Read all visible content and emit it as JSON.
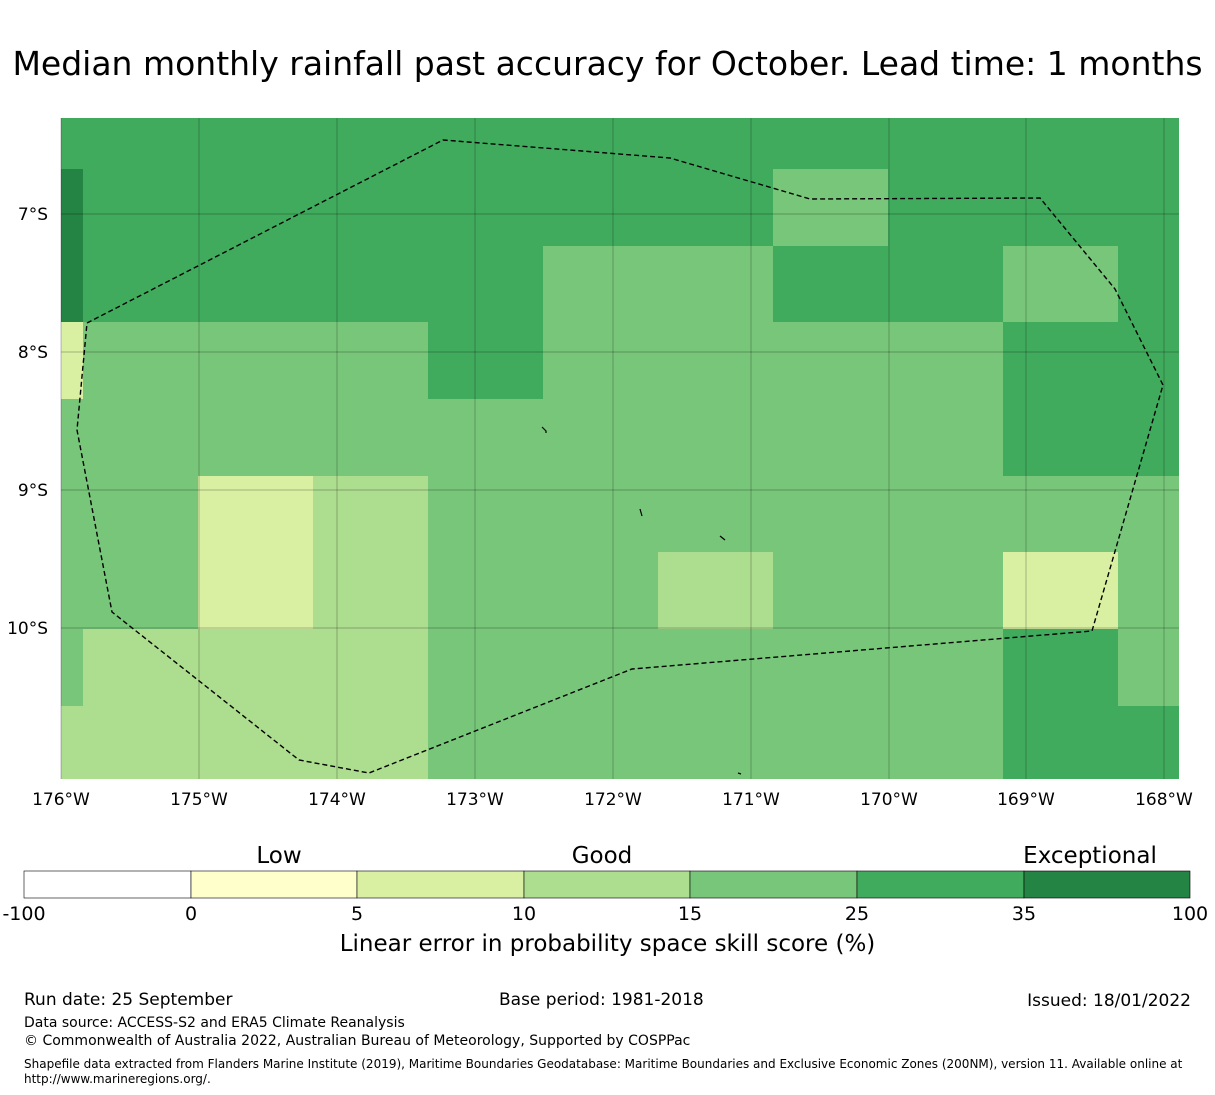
{
  "title": "Median monthly rainfall past accuracy for October. Lead time: 1 months",
  "map": {
    "lat_labels": [
      "7°S",
      "8°S",
      "9°S",
      "10°S"
    ],
    "lon_labels": [
      "176°W",
      "175°W",
      "174°W",
      "173°W",
      "172°W",
      "171°W",
      "170°W",
      "169°W",
      "168°W"
    ],
    "palette": {
      "c0": "#ffffcc",
      "c1": "#d9f0a3",
      "c2": "#addd8e",
      "c3": "#78c679",
      "c4": "#41ab5d",
      "c5": "#238443"
    },
    "grid_rows": [
      "c4 c4 c4 c4 c4 c4 c4 c4 c4 c4 c4",
      "c4 c4 c4 c4 c4 c4 c4 c3 c4 c4 c4",
      "c4 c4 c4 c4 c4 c3 c3 c4 c4 c3 c4",
      "c3 c3 c3 c3 c4 c3 c3 c3 c3 c4 c4",
      "c3 c3 c3 c3 c3 c3 c3 c3 c3 c4 c4",
      "c3 c3 c1 c2 c3 c3 c3 c3 c3 c3 c3",
      "c3 c3 c1 c2 c3 c3 c2 c3 c3 c1 c3",
      "c3 c2 c2 c2 c3 c3 c3 c3 c3 c4 c3",
      "c2 c2 c2 c2 c3 c3 c3 c3 c3 c4 c4"
    ],
    "extra_cells": [
      {
        "row_start": 1.0,
        "row_end": 3.0,
        "color": "c5"
      },
      {
        "row_start": 3.0,
        "row_end": 4.0,
        "color": "c1"
      }
    ]
  },
  "colorbar": {
    "category_labels": [
      "Low",
      "Good",
      "Exceptional"
    ],
    "tick_labels": [
      "-100",
      "0",
      "5",
      "10",
      "15",
      "25",
      "35",
      "100"
    ],
    "colors": [
      "#ffffff",
      "#ffffcc",
      "#d9f0a3",
      "#addd8e",
      "#78c679",
      "#41ab5d",
      "#238443"
    ],
    "label": "Linear error in probability space skill score (%)"
  },
  "footer": {
    "run_date": "Run date: 25 September",
    "base_period": "Base period: 1981-2018",
    "issued": "Issued: 18/01/2022",
    "data_source": "Data source: ACCESS-S2 and ERA5 Climate Reanalysis",
    "copyright": "© Commonwealth of Australia 2022, Australian Bureau of Meteorology, Supported by COSPPac",
    "shapefile": "Shapefile data extracted from Flanders Marine Institute (2019), Maritime Boundaries Geodatabase: Maritime Boundaries and Exclusive Economic Zones (200NM), version 11. Available online at http://www.marineregions.org/."
  }
}
